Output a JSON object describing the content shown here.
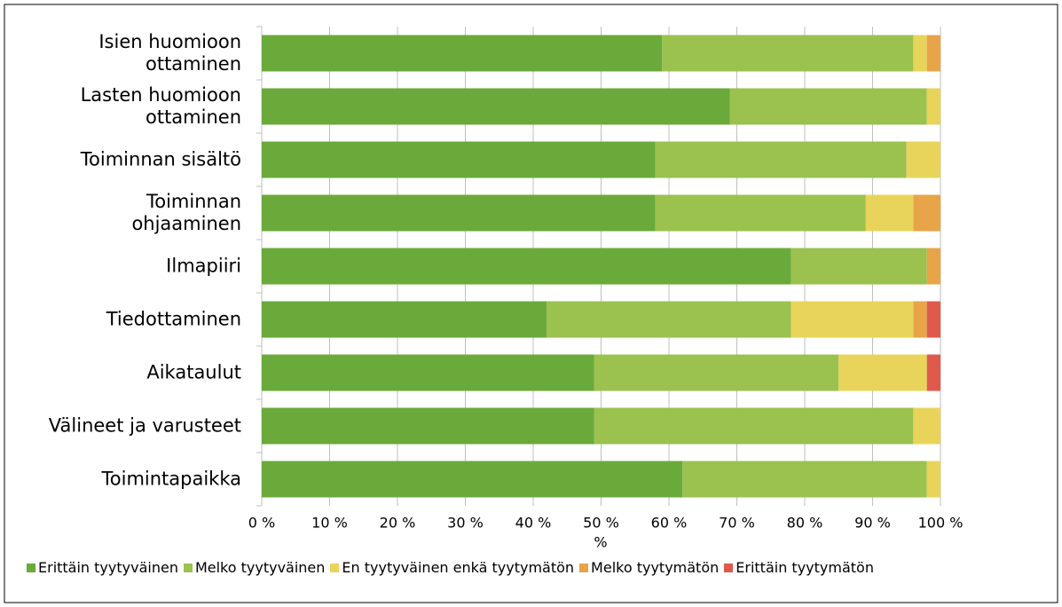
{
  "chart_data": {
    "type": "stacked-bar-horizontal",
    "categories": [
      "Isien huomioon\nottaminen",
      "Lasten huomioon\nottaminen",
      "Toiminnan sisältö",
      "Toiminnan\nohjaaminen",
      "Ilmapiiri",
      "Tiedottaminen",
      "Aikataulut",
      "Välineet ja varusteet",
      "Toimintapaikka"
    ],
    "series": [
      {
        "name": "Erittäin tyytyväinen",
        "color": "#6aaa3a",
        "values": [
          59,
          69,
          58,
          58,
          78,
          42,
          49,
          49,
          62
        ]
      },
      {
        "name": "Melko tyytyväinen",
        "color": "#9bc14f",
        "values": [
          37,
          29,
          37,
          31,
          20,
          36,
          36,
          47,
          36
        ]
      },
      {
        "name": "En tyytyväinen enkä tyytymätön",
        "color": "#e8d45a",
        "values": [
          2,
          2,
          5,
          7,
          0,
          18,
          13,
          4,
          2
        ]
      },
      {
        "name": "Melko tyytymätön",
        "color": "#e8a448",
        "values": [
          2,
          0,
          0,
          4,
          2,
          2,
          0,
          0,
          0
        ]
      },
      {
        "name": "Erittäin tyytymätön",
        "color": "#e05a4c",
        "values": [
          0,
          0,
          0,
          0,
          0,
          2,
          2,
          0,
          0
        ]
      }
    ],
    "xlabel": "%",
    "xlim": [
      0,
      100
    ],
    "xticks": [
      {
        "value": 0,
        "label": "0 %"
      },
      {
        "value": 10,
        "label": "10 %"
      },
      {
        "value": 20,
        "label": "20 %"
      },
      {
        "value": 30,
        "label": "30 %"
      },
      {
        "value": 40,
        "label": "40 %"
      },
      {
        "value": 50,
        "label": "50 %"
      },
      {
        "value": 60,
        "label": "60 %"
      },
      {
        "value": 70,
        "label": "70 %"
      },
      {
        "value": 80,
        "label": "80 %"
      },
      {
        "value": 90,
        "label": "90 %"
      },
      {
        "value": 100,
        "label": "100 %"
      }
    ],
    "grid": true,
    "legend": "bottom"
  }
}
